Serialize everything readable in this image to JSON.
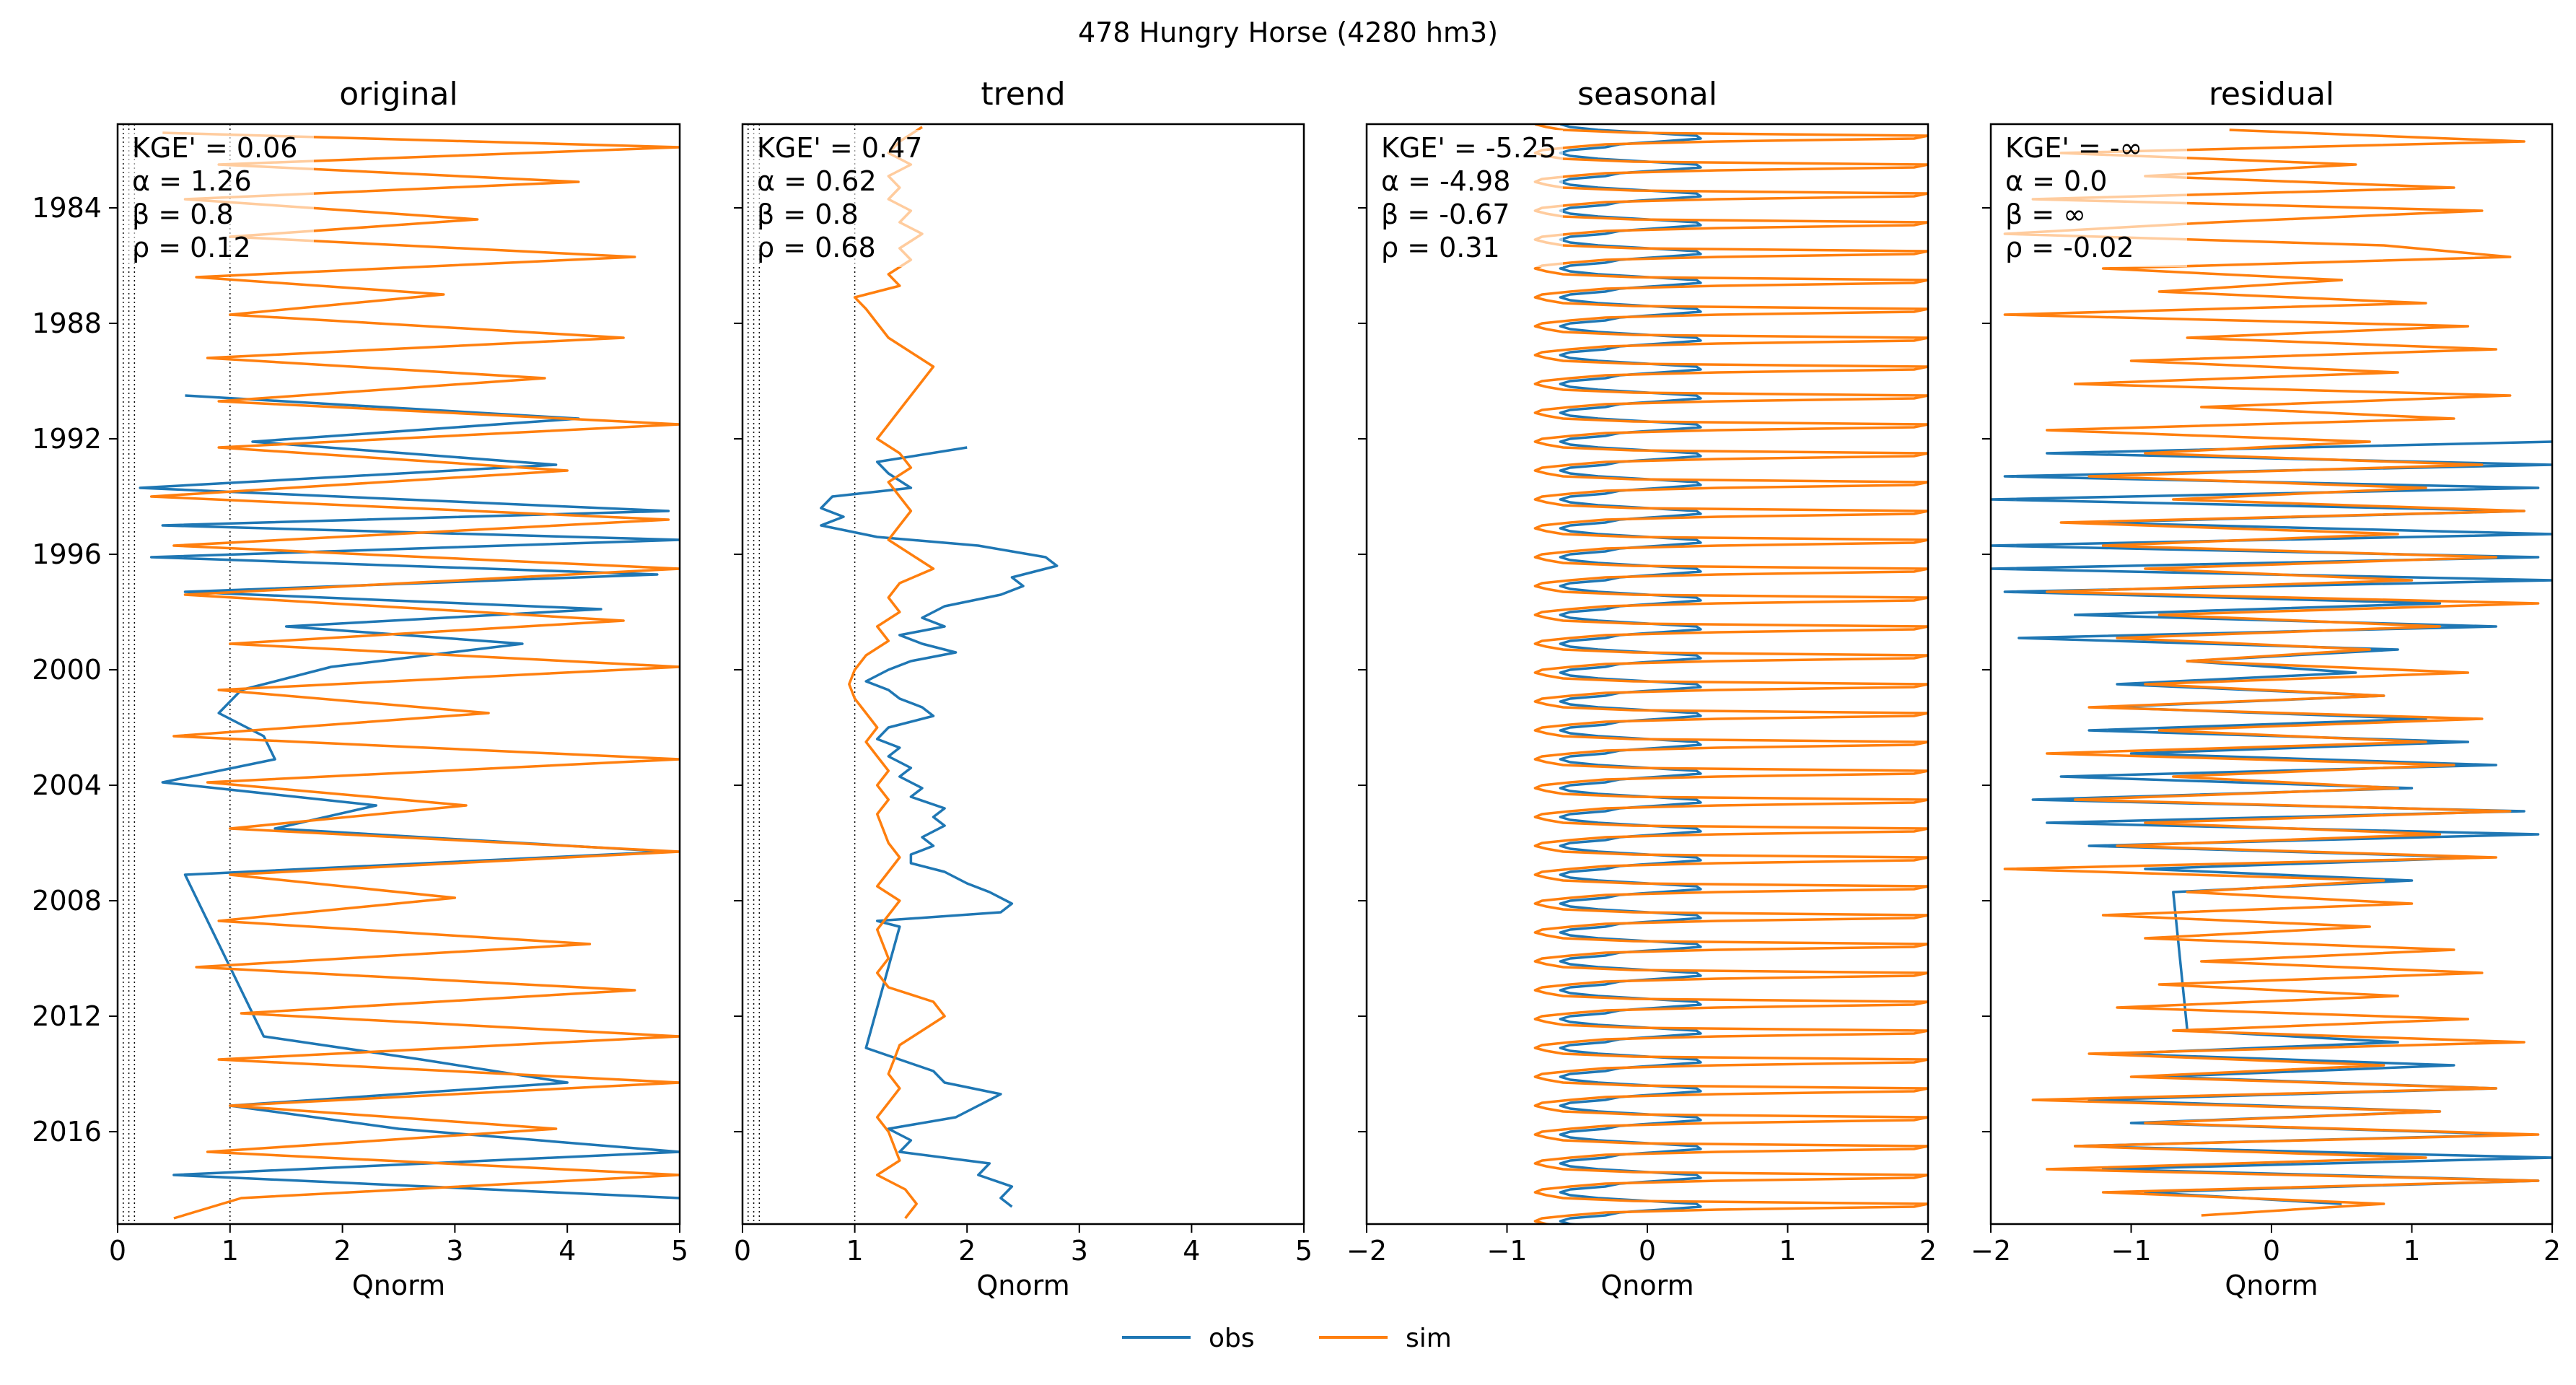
{
  "figure": {
    "title": "478  Hungry Horse (4280 hm3)"
  },
  "colors": {
    "obs": "#1f77b4",
    "sim": "#ff7f0e"
  },
  "chart_data": [
    {
      "type": "line",
      "title": "original",
      "xlabel": "Qnorm",
      "ylabel": "",
      "xlim": [
        0,
        5
      ],
      "ylim": [
        1981.6,
        2019.7
      ],
      "yaxis_inverted": true,
      "xticks": [
        "0",
        "1",
        "2",
        "3",
        "4",
        "5"
      ],
      "yticks": [
        "1984",
        "1988",
        "1992",
        "1996",
        "2000",
        "2004",
        "2008",
        "2012",
        "2016"
      ],
      "reference_lines_x": [
        0.05,
        0.1,
        0.15,
        1.0
      ],
      "stats": [
        "KGE' = 0.06",
        "α = 1.26",
        "β = 0.8",
        "ρ = 0.12"
      ],
      "series": [
        {
          "name": "obs",
          "y": [
            1991.0,
            1991.8,
            1992.6,
            1993.4,
            1994.2,
            1995.0,
            1995.5,
            1996.0,
            1996.6,
            1997.2,
            1997.8,
            1998.4,
            1999.0,
            1999.6,
            2000.4,
            2001.2,
            2002.0,
            2002.8,
            2003.6,
            2004.4,
            2005.2,
            2006.0,
            2006.8,
            2007.6,
            2013.2,
            2014.0,
            2014.8,
            2015.6,
            2016.4,
            2017.2,
            2018.0,
            2018.8
          ],
          "x": [
            0.6,
            4.1,
            1.2,
            3.9,
            0.2,
            4.9,
            0.4,
            5.0,
            0.3,
            4.8,
            0.6,
            4.3,
            1.5,
            3.6,
            1.9,
            1.1,
            0.9,
            1.3,
            1.4,
            0.4,
            2.3,
            1.4,
            4.9,
            0.6,
            1.3,
            2.7,
            4.0,
            1.0,
            2.5,
            5.0,
            0.5,
            5.0
          ]
        },
        {
          "name": "sim",
          "y": [
            1981.9,
            1982.4,
            1983.0,
            1983.6,
            1984.2,
            1984.9,
            1985.5,
            1986.2,
            1986.9,
            1987.5,
            1988.2,
            1989.0,
            1989.7,
            1990.4,
            1991.2,
            1992.0,
            1992.8,
            1993.6,
            1994.5,
            1995.3,
            1996.2,
            1997.0,
            1997.9,
            1998.8,
            1999.6,
            2000.4,
            2001.2,
            2002.0,
            2002.8,
            2003.6,
            2004.4,
            2005.2,
            2006.0,
            2006.8,
            2007.6,
            2008.4,
            2009.2,
            2010.0,
            2010.8,
            2011.6,
            2012.4,
            2013.2,
            2014.0,
            2014.8,
            2015.6,
            2016.4,
            2017.2,
            2018.0,
            2018.8,
            2019.5
          ],
          "x": [
            0.4,
            5.0,
            0.9,
            4.1,
            0.6,
            3.2,
            1.0,
            4.6,
            0.7,
            2.9,
            1.0,
            4.5,
            0.8,
            3.8,
            0.9,
            5.0,
            0.9,
            4.0,
            0.3,
            4.9,
            0.5,
            5.0,
            0.6,
            4.5,
            1.0,
            5.0,
            0.9,
            3.3,
            0.5,
            5.0,
            0.8,
            3.1,
            1.0,
            5.0,
            1.0,
            3.0,
            0.9,
            4.2,
            0.7,
            4.6,
            1.1,
            5.0,
            0.9,
            5.0,
            1.0,
            3.9,
            0.8,
            5.0,
            1.1,
            0.5
          ]
        }
      ]
    },
    {
      "type": "line",
      "title": "trend",
      "xlabel": "Qnorm",
      "ylabel": "",
      "xlim": [
        0,
        5
      ],
      "ylim": [
        1981.6,
        2019.7
      ],
      "yaxis_inverted": true,
      "xticks": [
        "0",
        "1",
        "2",
        "3",
        "4",
        "5"
      ],
      "yticks": [],
      "reference_lines_x": [
        0.05,
        0.1,
        0.15,
        1.0
      ],
      "stats": [
        "KGE' = 0.47",
        "α = 0.62",
        "β = 0.8",
        "ρ = 0.68"
      ],
      "series": [
        {
          "name": "obs",
          "y": [
            1992.8,
            1993.3,
            1993.7,
            1994.2,
            1994.5,
            1994.9,
            1995.2,
            1995.5,
            1995.9,
            1996.2,
            1996.6,
            1996.9,
            1997.3,
            1997.6,
            1997.9,
            1998.3,
            1998.7,
            1999.0,
            1999.3,
            1999.6,
            1999.9,
            2000.2,
            2000.5,
            2000.9,
            2001.2,
            2001.5,
            2001.8,
            2002.1,
            2002.5,
            2002.9,
            2003.2,
            2003.5,
            2003.9,
            2004.2,
            2004.6,
            2004.9,
            2005.3,
            2005.6,
            2005.9,
            2006.3,
            2006.6,
            2006.9,
            2007.2,
            2007.5,
            2007.9,
            2008.2,
            2008.6,
            2008.9,
            2009.2,
            2009.4,
            2013.6,
            2014.0,
            2014.4,
            2014.8,
            2015.2,
            2015.6,
            2016.0,
            2016.4,
            2016.8,
            2017.2,
            2017.6,
            2018.0,
            2018.4,
            2018.8,
            2019.1
          ],
          "x": [
            2.0,
            1.2,
            1.3,
            1.5,
            0.8,
            0.7,
            0.9,
            0.7,
            1.2,
            2.1,
            2.7,
            2.8,
            2.4,
            2.5,
            2.3,
            1.8,
            1.6,
            1.8,
            1.4,
            1.6,
            1.9,
            1.5,
            1.3,
            1.1,
            1.3,
            1.4,
            1.6,
            1.7,
            1.3,
            1.2,
            1.4,
            1.3,
            1.5,
            1.4,
            1.6,
            1.5,
            1.8,
            1.7,
            1.8,
            1.6,
            1.7,
            1.5,
            1.5,
            1.8,
            2.0,
            2.2,
            2.4,
            2.3,
            1.2,
            1.4,
            1.1,
            1.4,
            1.7,
            1.8,
            2.3,
            2.1,
            1.9,
            1.3,
            1.5,
            1.4,
            2.2,
            2.1,
            2.4,
            2.3,
            2.4
          ]
        },
        {
          "name": "sim",
          "y": [
            1981.7,
            1982.2,
            1982.6,
            1983.0,
            1983.4,
            1983.8,
            1984.2,
            1984.6,
            1985.0,
            1985.4,
            1985.9,
            1986.3,
            1986.8,
            1987.2,
            1987.6,
            1988.0,
            1988.5,
            1989.0,
            1989.5,
            1990.0,
            1990.5,
            1991.0,
            1991.5,
            1992.0,
            1992.5,
            1993.0,
            1993.5,
            1994.0,
            1994.5,
            1995.0,
            1995.5,
            1996.0,
            1996.5,
            1997.0,
            1997.5,
            1998.0,
            1998.5,
            1999.0,
            1999.5,
            2000.0,
            2000.5,
            2001.0,
            2001.5,
            2002.0,
            2002.5,
            2003.0,
            2003.5,
            2004.0,
            2004.5,
            2005.0,
            2005.5,
            2006.0,
            2006.5,
            2007.0,
            2007.5,
            2008.0,
            2008.5,
            2009.0,
            2009.5,
            2010.0,
            2010.5,
            2011.0,
            2011.5,
            2012.0,
            2012.5,
            2013.0,
            2013.5,
            2014.0,
            2014.5,
            2015.0,
            2015.5,
            2016.0,
            2016.5,
            2017.0,
            2017.5,
            2018.0,
            2018.5,
            2019.0,
            2019.5
          ],
          "x": [
            1.6,
            1.4,
            1.3,
            1.5,
            1.3,
            1.4,
            1.3,
            1.5,
            1.4,
            1.6,
            1.4,
            1.5,
            1.3,
            1.4,
            1.0,
            1.1,
            1.2,
            1.3,
            1.5,
            1.7,
            1.6,
            1.5,
            1.4,
            1.3,
            1.2,
            1.4,
            1.5,
            1.3,
            1.4,
            1.5,
            1.4,
            1.3,
            1.5,
            1.7,
            1.4,
            1.3,
            1.4,
            1.2,
            1.3,
            1.1,
            1.0,
            0.95,
            1.0,
            1.1,
            1.2,
            1.1,
            1.2,
            1.3,
            1.2,
            1.3,
            1.2,
            1.25,
            1.3,
            1.4,
            1.3,
            1.2,
            1.4,
            1.3,
            1.2,
            1.25,
            1.3,
            1.2,
            1.3,
            1.7,
            1.8,
            1.6,
            1.4,
            1.35,
            1.3,
            1.4,
            1.3,
            1.2,
            1.3,
            1.35,
            1.4,
            1.2,
            1.45,
            1.55,
            1.45
          ]
        }
      ]
    },
    {
      "type": "line",
      "title": "seasonal",
      "xlabel": "Qnorm",
      "ylabel": "",
      "xlim": [
        -2,
        2
      ],
      "ylim": [
        1981.6,
        2019.7
      ],
      "yaxis_inverted": true,
      "xticks": [
        "−2",
        "−1",
        "0",
        "1",
        "2"
      ],
      "yticks": [],
      "stats": [
        "KGE' = -5.25",
        "α = -4.98",
        "β = -0.67",
        "ρ = 0.31"
      ],
      "series": [
        {
          "name": "obs",
          "x_profile": [
            -0.62,
            -0.55,
            -0.35,
            0.0,
            0.35,
            0.38,
            0.1,
            -0.2,
            -0.3,
            -0.55
          ],
          "period_years": 1.0
        },
        {
          "name": "sim",
          "x_profile": [
            -0.8,
            -0.72,
            -0.6,
            -0.1,
            2.0,
            1.9,
            0.5,
            -0.3,
            -0.55,
            -0.75
          ],
          "period_years": 1.0
        }
      ]
    },
    {
      "type": "line",
      "title": "residual",
      "xlabel": "Qnorm",
      "ylabel": "",
      "xlim": [
        -2,
        2
      ],
      "ylim": [
        1981.6,
        2019.7
      ],
      "yaxis_inverted": true,
      "xticks": [
        "−2",
        "−1",
        "0",
        "1",
        "2"
      ],
      "yticks": [],
      "stats": [
        "KGE' = -∞",
        "α = 0.0",
        "β = ∞",
        "ρ = -0.02"
      ],
      "series": [
        {
          "name": "obs",
          "y": [
            1992.6,
            1993.0,
            1993.4,
            1993.8,
            1994.2,
            1994.6,
            1995.0,
            1995.4,
            1995.8,
            1996.2,
            1996.6,
            1997.0,
            1997.4,
            1997.8,
            1998.2,
            1998.6,
            1999.0,
            1999.4,
            1999.8,
            2000.2,
            2000.6,
            2001.0,
            2001.4,
            2001.8,
            2002.2,
            2002.6,
            2003.0,
            2003.4,
            2003.8,
            2004.2,
            2004.6,
            2005.0,
            2005.4,
            2005.8,
            2006.2,
            2006.6,
            2007.0,
            2007.4,
            2007.8,
            2008.2,
            2013.0,
            2013.4,
            2013.8,
            2014.2,
            2014.6,
            2015.0,
            2015.4,
            2015.8,
            2016.2,
            2016.6,
            2017.0,
            2017.4,
            2017.8,
            2018.2,
            2018.6,
            2019.0
          ],
          "x": [
            2.0,
            -1.6,
            2.0,
            -1.9,
            1.9,
            -2.0,
            1.8,
            -1.3,
            2.0,
            -2.0,
            1.9,
            -2.0,
            2.0,
            -1.9,
            1.2,
            -1.4,
            1.6,
            -1.8,
            0.9,
            -0.6,
            0.6,
            -1.1,
            0.8,
            -1.2,
            1.1,
            -1.3,
            1.4,
            -1.0,
            1.6,
            -1.5,
            1.0,
            -1.7,
            1.8,
            -1.6,
            1.9,
            -1.3,
            1.5,
            -0.9,
            1.0,
            -0.7,
            -0.6,
            0.9,
            -1.1,
            1.3,
            -0.8,
            1.6,
            -1.3,
            1.2,
            -1.0,
            1.8,
            -1.4,
            2.0,
            -1.2,
            1.9,
            -0.9,
            0.5
          ]
        },
        {
          "name": "sim",
          "y": [
            1981.8,
            1982.2,
            1982.6,
            1983.0,
            1983.4,
            1983.8,
            1984.2,
            1984.6,
            1985.0,
            1985.4,
            1985.8,
            1986.2,
            1986.6,
            1987.0,
            1987.4,
            1987.8,
            1988.2,
            1988.6,
            1989.0,
            1989.4,
            1989.8,
            1990.2,
            1990.6,
            1991.0,
            1991.4,
            1991.8,
            1992.2,
            1992.6,
            1993.0,
            1993.4,
            1993.8,
            1994.2,
            1994.6,
            1995.0,
            1995.4,
            1995.8,
            1996.2,
            1996.6,
            1997.0,
            1997.4,
            1997.8,
            1998.2,
            1998.6,
            1999.0,
            1999.4,
            1999.8,
            2000.2,
            2000.6,
            2001.0,
            2001.4,
            2001.8,
            2002.2,
            2002.6,
            2003.0,
            2003.4,
            2003.8,
            2004.2,
            2004.6,
            2005.0,
            2005.4,
            2005.8,
            2006.2,
            2006.6,
            2007.0,
            2007.4,
            2007.8,
            2008.2,
            2008.6,
            2009.0,
            2009.4,
            2009.8,
            2010.2,
            2010.6,
            2011.0,
            2011.4,
            2011.8,
            2012.2,
            2012.6,
            2013.0,
            2013.4,
            2013.8,
            2014.2,
            2014.6,
            2015.0,
            2015.4,
            2015.8,
            2016.2,
            2016.6,
            2017.0,
            2017.4,
            2017.8,
            2018.2,
            2018.6,
            2019.0,
            2019.4
          ],
          "x": [
            -0.3,
            1.8,
            -1.5,
            0.6,
            -0.9,
            1.3,
            -1.7,
            1.5,
            -0.4,
            -1.9,
            0.8,
            1.7,
            -1.2,
            0.5,
            -0.8,
            1.1,
            -1.9,
            1.4,
            -0.6,
            1.6,
            -1.0,
            0.9,
            -1.4,
            1.7,
            -0.5,
            1.3,
            -1.6,
            0.7,
            -0.9,
            1.5,
            -1.3,
            1.1,
            -0.7,
            1.8,
            -1.5,
            0.9,
            -1.2,
            1.6,
            -0.9,
            1.0,
            -1.6,
            1.9,
            -0.8,
            1.2,
            -1.1,
            0.7,
            -0.6,
            1.4,
            -0.9,
            0.8,
            -1.3,
            1.5,
            -0.8,
            1.1,
            -1.6,
            1.3,
            -0.7,
            0.9,
            -1.4,
            1.7,
            -0.9,
            1.2,
            -1.1,
            1.6,
            -1.9,
            0.8,
            -0.6,
            1.0,
            -1.2,
            0.7,
            -0.9,
            1.3,
            -0.5,
            1.5,
            -0.8,
            0.9,
            -1.1,
            1.4,
            -0.7,
            1.8,
            -1.3,
            0.8,
            -1.0,
            1.6,
            -1.7,
            1.2,
            -0.9,
            1.9,
            -1.4,
            1.1,
            -1.6,
            1.9,
            -1.2,
            0.8,
            -0.5
          ]
        }
      ]
    }
  ],
  "legend": {
    "items": [
      {
        "label": "obs"
      },
      {
        "label": "sim"
      }
    ]
  }
}
